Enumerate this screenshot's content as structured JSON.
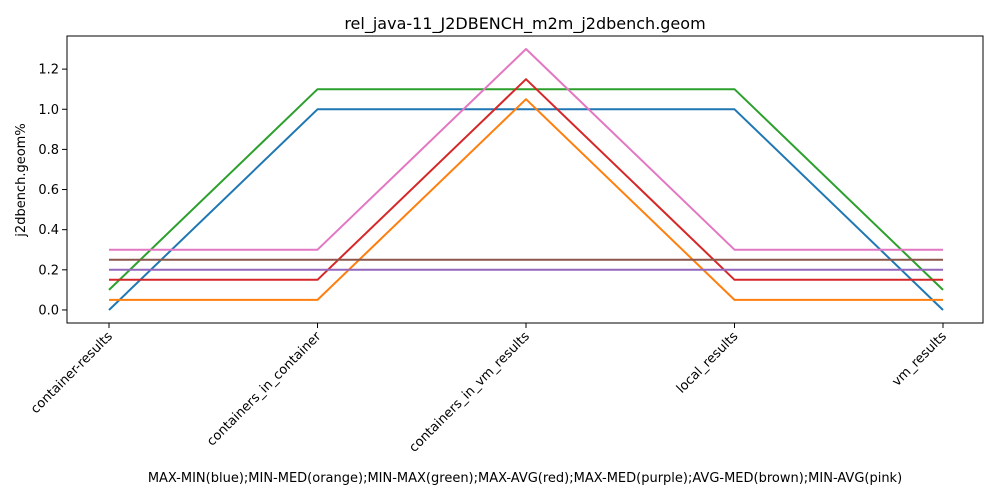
{
  "chart_data": {
    "type": "line",
    "title": "rel_java-11_J2DBENCH_m2m_j2dbench.geom",
    "xlabel": "MAX-MIN(blue);MIN-MED(orange);MIN-MAX(green);MAX-AVG(red);MAX-MED(purple);AVG-MED(brown);MIN-AVG(pink)",
    "ylabel": "j2dbench.geom%",
    "categories": [
      "container-results",
      "containers_in_container",
      "containers_in_vm_results",
      "local_results",
      "vm_results"
    ],
    "ylim": [
      -0.065,
      1.365
    ],
    "yticks": [
      0.0,
      0.2,
      0.4,
      0.6,
      0.8,
      1.0,
      1.2
    ],
    "ytick_labels": [
      "0.0",
      "0.2",
      "0.4",
      "0.6",
      "0.8",
      "1.0",
      "1.2"
    ],
    "grid": false,
    "legend": "none",
    "series": [
      {
        "color": "#1f77b4",
        "values": [
          0.0,
          1.0,
          1.0,
          1.0,
          0.0
        ]
      },
      {
        "color": "#ff7f0e",
        "values": [
          0.05,
          0.05,
          1.05,
          0.05,
          0.05
        ]
      },
      {
        "color": "#2ca02c",
        "values": [
          0.1,
          1.1,
          1.1,
          1.1,
          0.1
        ]
      },
      {
        "color": "#d62728",
        "values": [
          0.15,
          0.15,
          1.15,
          0.15,
          0.15
        ]
      },
      {
        "color": "#9467bd",
        "values": [
          0.2,
          0.2,
          0.2,
          0.2,
          0.2
        ]
      },
      {
        "color": "#8c564b",
        "values": [
          0.25,
          0.25,
          0.25,
          0.25,
          0.25
        ]
      },
      {
        "color": "#e377c2",
        "values": [
          0.3,
          0.3,
          1.3,
          0.3,
          0.3
        ]
      }
    ]
  }
}
